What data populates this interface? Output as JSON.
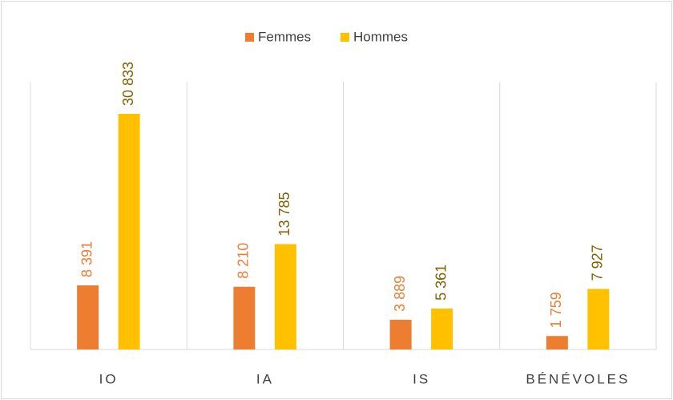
{
  "chart_data": {
    "type": "bar",
    "categories": [
      "IO",
      "IA",
      "IS",
      "BÉNÉVOLES"
    ],
    "series": [
      {
        "name": "Femmes",
        "color": "#ED7D31",
        "label_color": "#ED7D31",
        "values": [
          8391,
          8210,
          3889,
          1759
        ],
        "value_labels": [
          "8 391",
          "8 210",
          "3 889",
          "1 759"
        ]
      },
      {
        "name": "Hommes",
        "color": "#FFC000",
        "label_color": "#7F6000",
        "values": [
          30833,
          13785,
          5361,
          7927
        ],
        "value_labels": [
          "30 833",
          "13 785",
          "5 361",
          "7 927"
        ]
      }
    ],
    "ylim": [
      0,
      35000
    ],
    "legend": "top"
  }
}
